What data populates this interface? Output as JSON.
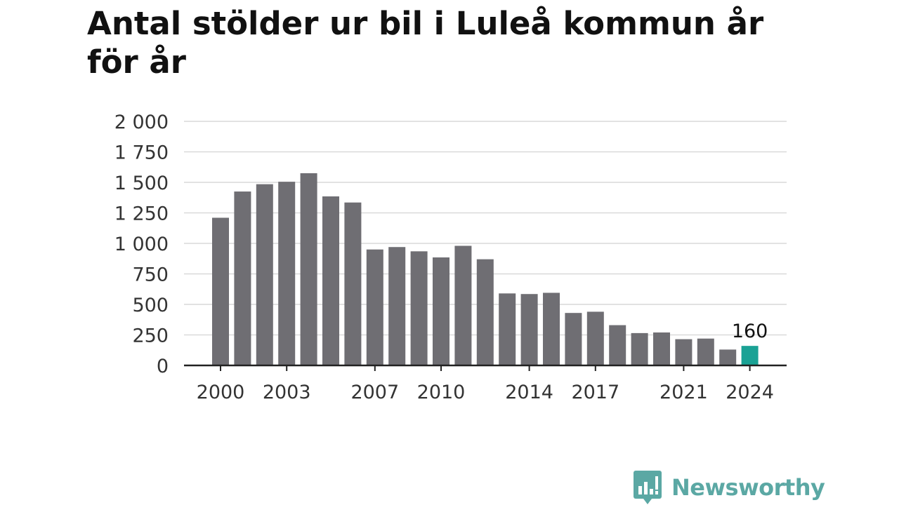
{
  "chart_data": {
    "type": "bar",
    "title": "Antal stölder ur bil i Luleå kommun år för år",
    "xlabel": "",
    "ylabel": "",
    "categories": [
      "2000",
      "2001",
      "2002",
      "2003",
      "2004",
      "2005",
      "2006",
      "2007",
      "2008",
      "2009",
      "2010",
      "2011",
      "2012",
      "2013",
      "2014",
      "2015",
      "2016",
      "2017",
      "2018",
      "2019",
      "2020",
      "2021",
      "2022",
      "2023",
      "2024"
    ],
    "values": [
      1210,
      1425,
      1485,
      1505,
      1575,
      1385,
      1335,
      950,
      970,
      935,
      885,
      980,
      870,
      590,
      585,
      595,
      430,
      440,
      330,
      265,
      270,
      215,
      220,
      130,
      160
    ],
    "ylim": [
      0,
      2000
    ],
    "y_ticks": [
      0,
      250,
      500,
      750,
      1000,
      1250,
      1500,
      1750,
      2000
    ],
    "y_tick_labels": [
      "0",
      "250",
      "500",
      "750",
      "1 000",
      "1 250",
      "1 500",
      "1 750",
      "2 000"
    ],
    "x_tick_labels": [
      "2000",
      "2003",
      "2007",
      "2010",
      "2014",
      "2017",
      "2021",
      "2024"
    ],
    "highlight_label": "160",
    "highlight_index": 24,
    "grid": true,
    "bar_color": "#6f6e73",
    "highlight_color": "#1aa295"
  },
  "brand": {
    "name": "Newsworthy",
    "icon": "newsworthy-logo-icon",
    "color": "#5ba8a4"
  }
}
